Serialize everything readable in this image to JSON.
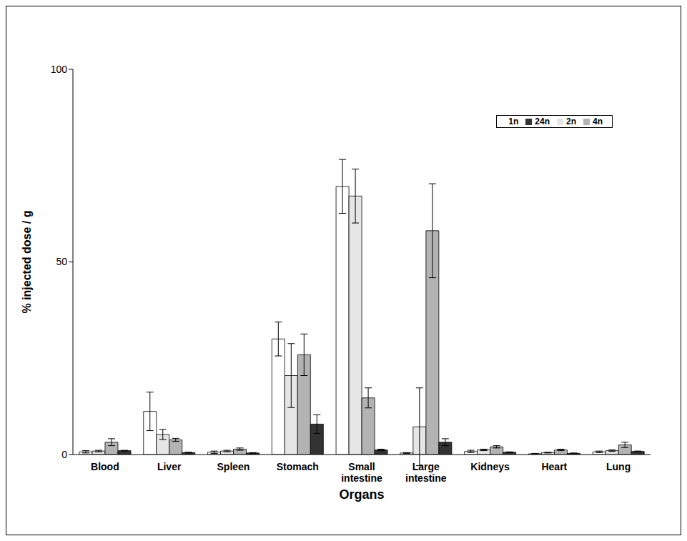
{
  "chart_data": {
    "type": "bar",
    "x_label": "Organs",
    "y_label": "% injected dose / g",
    "categories": [
      "Blood",
      "Liver",
      "Spleen",
      "Stomach",
      "Small intestine",
      "Large intestine",
      "Kidneys",
      "Heart",
      "Lung"
    ],
    "ylim": [
      0,
      100
    ],
    "yticks": [
      0,
      50,
      100
    ],
    "grid": false,
    "legend": "upper right",
    "series": [
      {
        "name": "1n",
        "color": "#ffffff",
        "values": [
          0.7,
          11.2,
          0.6,
          30.0,
          69.6,
          0.4,
          0.8,
          0.2,
          0.7
        ],
        "errors": [
          0.3,
          5.0,
          0.3,
          4.4,
          7.0,
          0.1,
          0.3,
          0.1,
          0.2
        ]
      },
      {
        "name": "2n",
        "color": "#e6e6e6",
        "values": [
          0.9,
          5.2,
          0.9,
          20.5,
          67.1,
          7.2,
          1.2,
          0.5,
          1.0
        ],
        "errors": [
          0.2,
          1.3,
          0.2,
          8.3,
          7.0,
          10.1,
          0.2,
          0.1,
          0.2
        ]
      },
      {
        "name": "4n",
        "color": "#b3b3b3",
        "values": [
          3.2,
          3.8,
          1.4,
          25.9,
          14.7,
          58.1,
          2.0,
          1.2,
          2.5
        ],
        "errors": [
          0.9,
          0.4,
          0.3,
          5.4,
          2.6,
          12.2,
          0.3,
          0.2,
          0.7
        ]
      },
      {
        "name": "24n",
        "color": "#333333",
        "values": [
          1.0,
          0.5,
          0.4,
          7.9,
          1.2,
          3.2,
          0.6,
          0.3,
          0.8
        ],
        "errors": [
          0.1,
          0.1,
          0.1,
          2.4,
          0.2,
          0.9,
          0.1,
          0.1,
          0.1
        ]
      }
    ]
  }
}
